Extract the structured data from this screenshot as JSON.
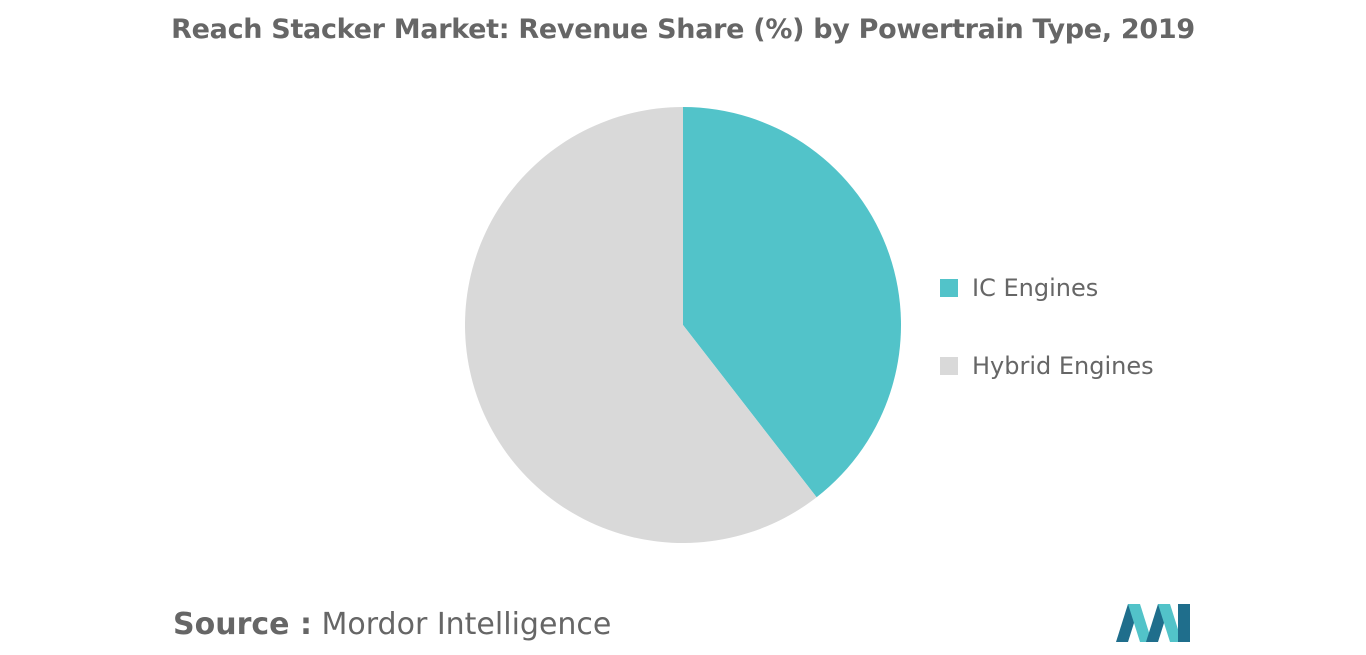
{
  "chart_data": {
    "type": "pie",
    "title": "Reach Stacker Market: Revenue Share (%) by Powertrain Type, 2019",
    "slices": [
      {
        "label": "IC Engines",
        "value": 39.5,
        "color": "#52c3c9"
      },
      {
        "label": "Hybrid Engines",
        "value": 60.5,
        "color": "#d9d9d9"
      }
    ],
    "legend_position": "right",
    "start_angle_deg": 0,
    "direction": "clockwise"
  },
  "source": {
    "label": "Source :",
    "value": "Mordor Intelligence"
  },
  "colors": {
    "text": "#666666",
    "logo_dark": "#1f6e8c",
    "logo_light": "#52c3c9"
  }
}
